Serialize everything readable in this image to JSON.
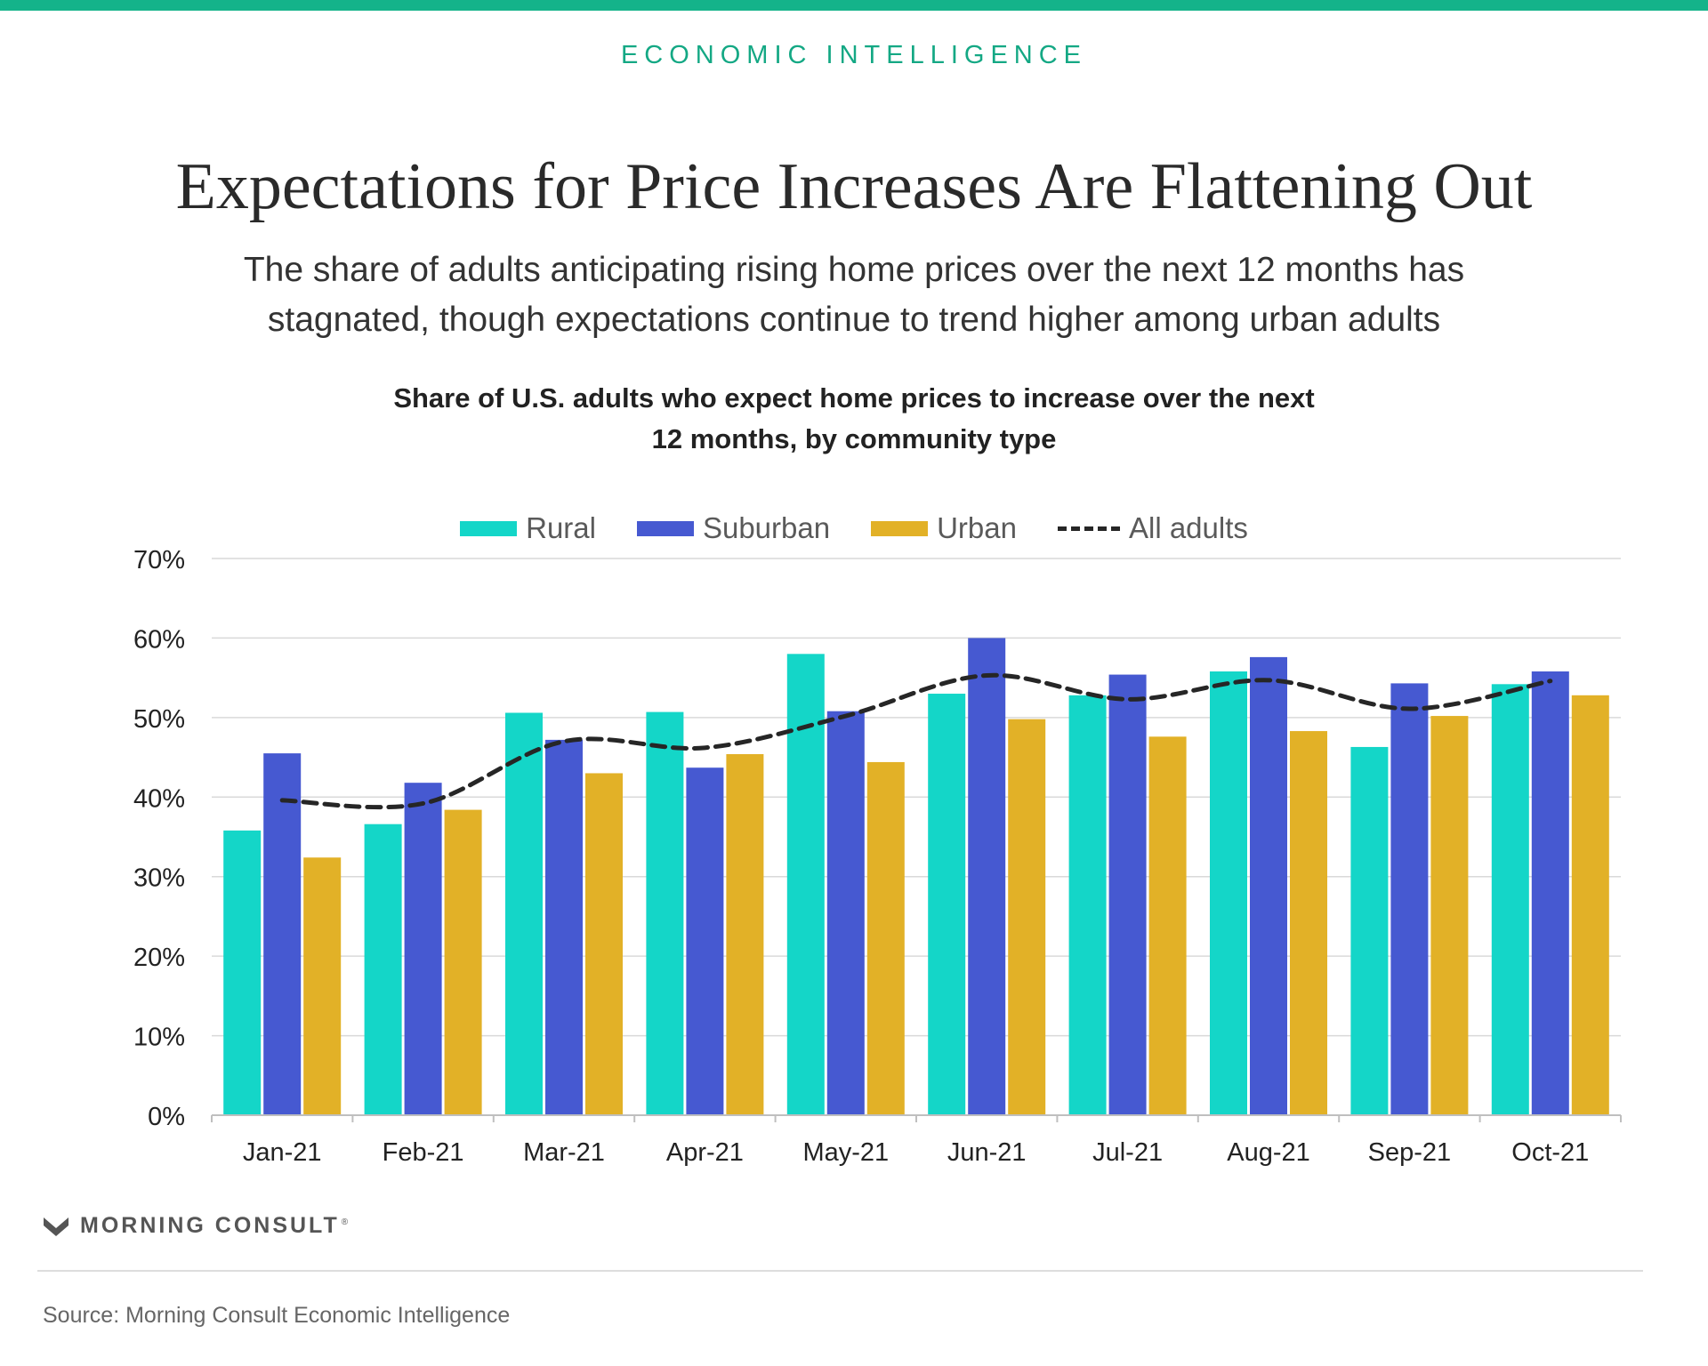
{
  "header": {
    "kicker": "ECONOMIC INTELLIGENCE",
    "title": "Expectations for Price Increases Are Flattening Out",
    "subtitle_line1": "The share of adults anticipating rising home prices over the next 12 months has",
    "subtitle_line2": "stagnated, though expectations continue to trend higher among urban adults"
  },
  "chart_data": {
    "type": "bar",
    "title_line1": "Share of U.S. adults who expect home prices to increase over the next",
    "title_line2": "12 months, by community type",
    "xlabel": "",
    "ylabel": "",
    "categories": [
      "Jan-21",
      "Feb-21",
      "Mar-21",
      "Apr-21",
      "May-21",
      "Jun-21",
      "Jul-21",
      "Aug-21",
      "Sep-21",
      "Oct-21"
    ],
    "series": [
      {
        "name": "Rural",
        "color": "#14d6c8",
        "values": [
          35.8,
          36.6,
          50.6,
          50.7,
          58.0,
          53.0,
          52.8,
          55.8,
          46.3,
          54.2
        ]
      },
      {
        "name": "Suburban",
        "color": "#4659d1",
        "values": [
          45.5,
          41.8,
          47.2,
          43.7,
          50.8,
          60.0,
          55.4,
          57.6,
          54.3,
          55.8
        ]
      },
      {
        "name": "Urban",
        "color": "#e2b127",
        "values": [
          32.4,
          38.4,
          43.0,
          45.4,
          44.4,
          49.8,
          47.6,
          48.3,
          50.2,
          52.8
        ]
      }
    ],
    "line_series": {
      "name": "All adults",
      "style": "dashed",
      "color": "#262626",
      "values": [
        39.6,
        39.2,
        47.0,
        46.2,
        50.2,
        55.3,
        52.3,
        54.7,
        51.1,
        54.6
      ]
    },
    "ylim": [
      0,
      70
    ],
    "yticks": [
      0,
      10,
      20,
      30,
      40,
      50,
      60,
      70
    ],
    "ytick_labels": [
      "0%",
      "10%",
      "20%",
      "30%",
      "40%",
      "50%",
      "60%",
      "70%"
    ],
    "grid": true,
    "legend_position": "top-center"
  },
  "footer": {
    "brand": "MORNING CONSULT",
    "brand_mark": "®",
    "source": "Source: Morning Consult Economic Intelligence"
  }
}
